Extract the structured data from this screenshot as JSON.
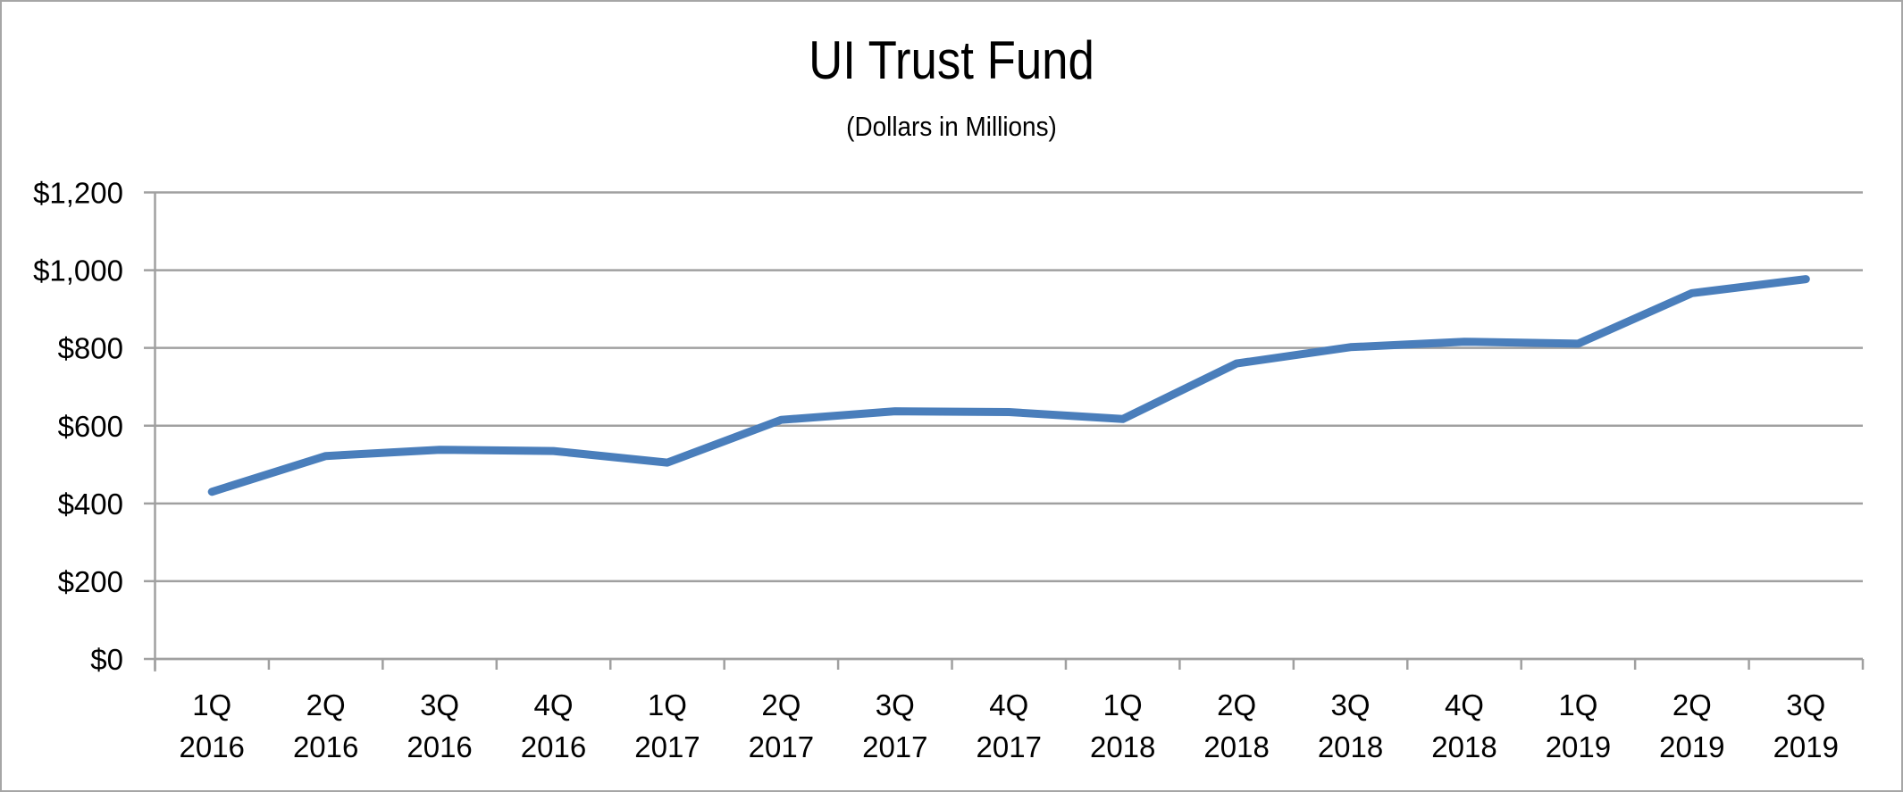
{
  "chart_data": {
    "type": "line",
    "title": "UI Trust Fund",
    "subtitle": "(Dollars in Millions)",
    "xlabel": "",
    "ylabel": "",
    "ylim": [
      0,
      1200
    ],
    "yticks": [
      0,
      200,
      400,
      600,
      800,
      1000,
      1200
    ],
    "ytick_labels": [
      "$0",
      "$200",
      "$400",
      "$600",
      "$800",
      "$1,000",
      "$1,200"
    ],
    "grid": true,
    "legend": null,
    "categories": [
      [
        "1Q",
        "2016"
      ],
      [
        "2Q",
        "2016"
      ],
      [
        "3Q",
        "2016"
      ],
      [
        "4Q",
        "2016"
      ],
      [
        "1Q",
        "2017"
      ],
      [
        "2Q",
        "2017"
      ],
      [
        "3Q",
        "2017"
      ],
      [
        "4Q",
        "2017"
      ],
      [
        "1Q",
        "2018"
      ],
      [
        "2Q",
        "2018"
      ],
      [
        "3Q",
        "2018"
      ],
      [
        "4Q",
        "2018"
      ],
      [
        "1Q",
        "2019"
      ],
      [
        "2Q",
        "2019"
      ],
      [
        "3Q",
        "2019"
      ]
    ],
    "series": [
      {
        "name": "UI Trust Fund",
        "color": "#4a7ebb",
        "values": [
          430,
          522,
          538,
          535,
          505,
          615,
          637,
          635,
          617,
          760,
          802,
          816,
          811,
          941,
          977
        ]
      }
    ]
  },
  "colors": {
    "line": "#4a7ebb",
    "grid": "#a0a0a0",
    "border": "#a6a6a6",
    "text": "#000000"
  }
}
